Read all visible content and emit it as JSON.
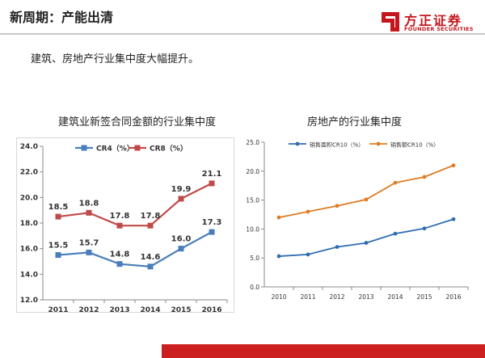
{
  "slide": {
    "title": "新周期：产能出清",
    "subtitle": "建筑、房地产行业集中度大幅提升。"
  },
  "logo": {
    "name": "方正证券",
    "english": "FOUNDER SECURITIES",
    "color": "#c4161c"
  },
  "colors": {
    "accent_red": "#cc1f1f",
    "left_series_1": "#4a7ebb",
    "left_series_2": "#be4b48",
    "right_series_1": "#2e6db4",
    "right_series_2": "#e07b24"
  },
  "chart_data": [
    {
      "type": "line",
      "title": "建筑业新签合同金额的行业集中度",
      "categories": [
        "2011",
        "2012",
        "2013",
        "2014",
        "2015",
        "2016"
      ],
      "series": [
        {
          "name": "CR4（%）",
          "values": [
            15.5,
            15.7,
            14.8,
            14.6,
            16.0,
            17.3
          ]
        },
        {
          "name": "CR8（%）",
          "values": [
            18.5,
            18.8,
            17.8,
            17.8,
            19.9,
            21.1
          ]
        }
      ],
      "ylim": [
        12.0,
        24.0
      ],
      "yticks": [
        "12.0",
        "14.0",
        "16.0",
        "18.0",
        "20.0",
        "22.0",
        "24.0"
      ],
      "grid": false,
      "legend": "top",
      "data_labels": true
    },
    {
      "type": "line",
      "title": "房地产的行业集中度",
      "categories": [
        "2010",
        "2011",
        "2012",
        "2013",
        "2014",
        "2015",
        "2016"
      ],
      "series": [
        {
          "name": "销售面积CR10（%）",
          "values": [
            5.3,
            5.6,
            6.9,
            7.6,
            9.2,
            10.1,
            11.7
          ]
        },
        {
          "name": "销售额CR10（%）",
          "values": [
            12.0,
            13.0,
            14.0,
            15.1,
            18.0,
            19.0,
            21.0
          ]
        }
      ],
      "ylim": [
        0,
        25
      ],
      "yticks": [
        "0.0",
        "5.0",
        "10.0",
        "15.0",
        "20.0",
        "25.0"
      ],
      "grid": false,
      "legend": "top",
      "data_labels": false
    }
  ]
}
